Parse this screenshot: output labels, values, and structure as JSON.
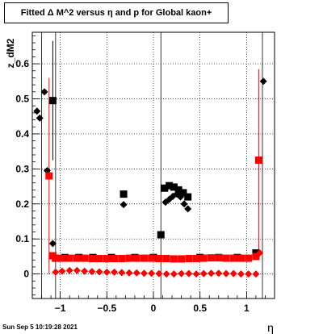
{
  "chart_data": {
    "type": "scatter",
    "title": "Fitted Δ M^2 versus η and p for Global kaon+",
    "xlabel": "η",
    "ylabel": "z_dM2",
    "xlim": [
      -1.3,
      1.3
    ],
    "ylim": [
      -0.07,
      0.69
    ],
    "x_ticks": [
      -1,
      -0.5,
      0,
      0.5,
      1
    ],
    "x_tick_labels": [
      "−1",
      "−0.5",
      "0",
      "0.5",
      "1"
    ],
    "y_ticks": [
      0,
      0.1,
      0.2,
      0.3,
      0.4,
      0.5,
      0.6
    ],
    "y_tick_labels": [
      "0",
      "0.1",
      "0.2",
      "0.3",
      "0.4",
      "0.5",
      "0.6"
    ],
    "grid": true,
    "vertical_lines": [
      -1.2,
      -1.05,
      0.08,
      1.17
    ],
    "series": [
      {
        "marker": "diamond",
        "color": "#000000",
        "points": [
          [
            -1.25,
            0.465,
            0
          ],
          [
            -1.22,
            0.445,
            0
          ],
          [
            -1.17,
            0.52,
            0
          ],
          [
            -1.14,
            0.295,
            0
          ],
          [
            -1.08,
            0.087,
            0
          ],
          [
            -0.32,
            0.198,
            0
          ],
          [
            0.13,
            0.205,
            0
          ],
          [
            0.17,
            0.213,
            0
          ],
          [
            0.21,
            0.222,
            0
          ],
          [
            0.25,
            0.228,
            0
          ],
          [
            0.29,
            0.22,
            0
          ],
          [
            0.33,
            0.2,
            0
          ],
          [
            0.37,
            0.186,
            0
          ],
          [
            1.18,
            0.55,
            0
          ]
        ]
      },
      {
        "marker": "square",
        "color": "#000000",
        "points": [
          [
            -1.08,
            0.495,
            0.17
          ],
          [
            -1.05,
            0.045,
            0
          ],
          [
            -0.95,
            0.047,
            0
          ],
          [
            -0.8,
            0.047,
            0
          ],
          [
            -0.65,
            0.047,
            0
          ],
          [
            -0.45,
            0.047,
            0
          ],
          [
            -0.32,
            0.228,
            0
          ],
          [
            -0.2,
            0.047,
            0
          ],
          [
            0.0,
            0.047,
            0
          ],
          [
            0.08,
            0.112,
            0
          ],
          [
            0.12,
            0.245,
            0
          ],
          [
            0.17,
            0.252,
            0
          ],
          [
            0.22,
            0.248,
            0
          ],
          [
            0.27,
            0.24,
            0
          ],
          [
            0.32,
            0.232,
            0
          ],
          [
            0.37,
            0.22,
            0
          ],
          [
            0.5,
            0.047,
            0
          ],
          [
            0.7,
            0.047,
            0
          ],
          [
            0.9,
            0.047,
            0
          ],
          [
            1.1,
            0.06,
            0
          ]
        ]
      },
      {
        "marker": "square",
        "color": "#ff0000",
        "points": [
          [
            -1.12,
            0.28,
            0.28
          ],
          [
            -1.08,
            0.052,
            0
          ],
          [
            -1.05,
            0.045,
            0
          ],
          [
            -0.98,
            0.045,
            0
          ],
          [
            -0.9,
            0.045,
            0
          ],
          [
            -0.82,
            0.045,
            0
          ],
          [
            -0.74,
            0.045,
            0
          ],
          [
            -0.66,
            0.044,
            0
          ],
          [
            -0.58,
            0.044,
            0
          ],
          [
            -0.5,
            0.044,
            0
          ],
          [
            -0.42,
            0.044,
            0
          ],
          [
            -0.34,
            0.044,
            0
          ],
          [
            -0.26,
            0.045,
            0
          ],
          [
            -0.18,
            0.045,
            0
          ],
          [
            -0.1,
            0.045,
            0
          ],
          [
            -0.02,
            0.045,
            0
          ],
          [
            0.06,
            0.044,
            0
          ],
          [
            0.14,
            0.044,
            0
          ],
          [
            0.22,
            0.043,
            0
          ],
          [
            0.3,
            0.043,
            0
          ],
          [
            0.38,
            0.044,
            0
          ],
          [
            0.46,
            0.044,
            0
          ],
          [
            0.54,
            0.045,
            0
          ],
          [
            0.62,
            0.046,
            0
          ],
          [
            0.7,
            0.046,
            0
          ],
          [
            0.78,
            0.045,
            0
          ],
          [
            0.86,
            0.045,
            0
          ],
          [
            0.94,
            0.045,
            0
          ],
          [
            1.02,
            0.045,
            0
          ],
          [
            1.1,
            0.05,
            0
          ],
          [
            1.13,
            0.325,
            0.26
          ]
        ]
      },
      {
        "marker": "diamond",
        "color": "#ff0000",
        "points": [
          [
            -1.05,
            0.005,
            0
          ],
          [
            -0.98,
            0.008,
            0
          ],
          [
            -0.9,
            0.01,
            0
          ],
          [
            -0.82,
            0.01,
            0
          ],
          [
            -0.74,
            0.008,
            0
          ],
          [
            -0.66,
            0.007,
            0
          ],
          [
            -0.58,
            0.006,
            0
          ],
          [
            -0.5,
            0.005,
            0
          ],
          [
            -0.42,
            0.005,
            0
          ],
          [
            -0.34,
            0.004,
            0
          ],
          [
            -0.26,
            0.003,
            0
          ],
          [
            -0.18,
            0.003,
            0
          ],
          [
            -0.1,
            0.002,
            0
          ],
          [
            -0.02,
            0.002,
            0
          ],
          [
            0.06,
            0.001,
            0
          ],
          [
            0.14,
            0.0,
            0
          ],
          [
            0.22,
            0.0,
            0
          ],
          [
            0.3,
            0.001,
            0
          ],
          [
            0.38,
            0.001,
            0
          ],
          [
            0.46,
            0.0,
            0
          ],
          [
            0.54,
            0.001,
            0
          ],
          [
            0.62,
            0.002,
            0
          ],
          [
            0.7,
            0.002,
            0
          ],
          [
            0.78,
            0.001,
            0
          ],
          [
            0.86,
            0.001,
            0
          ],
          [
            0.94,
            0.0,
            0
          ],
          [
            1.02,
            0.0,
            0
          ],
          [
            1.1,
            0.0,
            0
          ],
          [
            1.14,
            0.06,
            0
          ]
        ]
      }
    ]
  },
  "timestamp": "Sun Sep  5 10:19:28 2021"
}
